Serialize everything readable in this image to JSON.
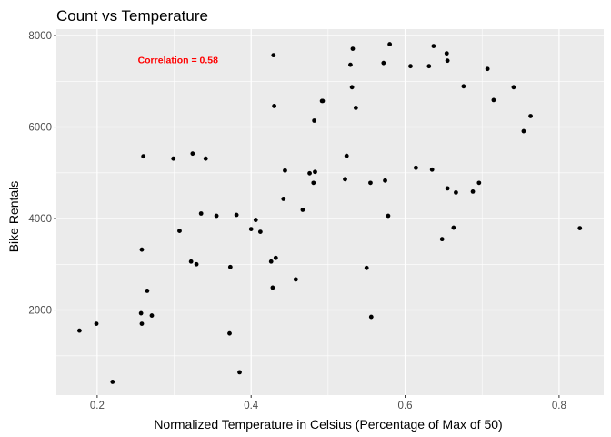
{
  "chart_data": {
    "type": "scatter",
    "title": "Count vs Temperature",
    "xlabel": "Normalized Temperature in Celsius (Percentage of Max of 50)",
    "ylabel": "Bike Rentals",
    "xlim": [
      0.147,
      0.858
    ],
    "ylim": [
      140,
      8140
    ],
    "xticks": [
      0.2,
      0.4,
      0.6,
      0.8
    ],
    "xtick_labels": [
      "0.2",
      "0.4",
      "0.6",
      "0.8"
    ],
    "yticks": [
      2000,
      4000,
      6000,
      8000
    ],
    "ytick_labels": [
      "2000",
      "4000",
      "6000",
      "8000"
    ],
    "grid": true,
    "legend": "none",
    "annotation": {
      "text": "Correlation = 0.58",
      "x": 0.305,
      "y": 7450,
      "color": "#ff0000"
    },
    "series": [
      {
        "color": "#000000",
        "points": [
          [
            0.177,
            1550
          ],
          [
            0.199,
            1700
          ],
          [
            0.22,
            430
          ],
          [
            0.257,
            1930
          ],
          [
            0.258,
            1700
          ],
          [
            0.258,
            3320
          ],
          [
            0.26,
            5360
          ],
          [
            0.265,
            2420
          ],
          [
            0.271,
            1880
          ],
          [
            0.299,
            5310
          ],
          [
            0.307,
            3730
          ],
          [
            0.322,
            3060
          ],
          [
            0.324,
            5420
          ],
          [
            0.329,
            3000
          ],
          [
            0.335,
            4110
          ],
          [
            0.341,
            5310
          ],
          [
            0.355,
            4060
          ],
          [
            0.372,
            1490
          ],
          [
            0.373,
            2940
          ],
          [
            0.381,
            4080
          ],
          [
            0.385,
            640
          ],
          [
            0.4,
            3770
          ],
          [
            0.406,
            3970
          ],
          [
            0.412,
            3710
          ],
          [
            0.426,
            3060
          ],
          [
            0.428,
            2490
          ],
          [
            0.429,
            7570
          ],
          [
            0.43,
            6460
          ],
          [
            0.432,
            3140
          ],
          [
            0.442,
            4430
          ],
          [
            0.444,
            5050
          ],
          [
            0.458,
            2670
          ],
          [
            0.467,
            4190
          ],
          [
            0.476,
            4990
          ],
          [
            0.481,
            4780
          ],
          [
            0.482,
            6140
          ],
          [
            0.483,
            5020
          ],
          [
            0.492,
            6570
          ],
          [
            0.493,
            6570
          ],
          [
            0.522,
            4860
          ],
          [
            0.524,
            5370
          ],
          [
            0.529,
            7360
          ],
          [
            0.531,
            6870
          ],
          [
            0.532,
            7710
          ],
          [
            0.536,
            6420
          ],
          [
            0.55,
            2920
          ],
          [
            0.555,
            4780
          ],
          [
            0.556,
            1850
          ],
          [
            0.572,
            7400
          ],
          [
            0.574,
            4830
          ],
          [
            0.578,
            4060
          ],
          [
            0.58,
            7810
          ],
          [
            0.607,
            7330
          ],
          [
            0.614,
            5110
          ],
          [
            0.631,
            7330
          ],
          [
            0.635,
            5070
          ],
          [
            0.637,
            7770
          ],
          [
            0.648,
            3550
          ],
          [
            0.654,
            7610
          ],
          [
            0.655,
            4660
          ],
          [
            0.655,
            7450
          ],
          [
            0.663,
            3800
          ],
          [
            0.666,
            4570
          ],
          [
            0.676,
            6890
          ],
          [
            0.688,
            4590
          ],
          [
            0.696,
            4780
          ],
          [
            0.707,
            7270
          ],
          [
            0.715,
            6590
          ],
          [
            0.741,
            6870
          ],
          [
            0.754,
            5910
          ],
          [
            0.763,
            6240
          ],
          [
            0.827,
            3790
          ]
        ]
      }
    ]
  }
}
